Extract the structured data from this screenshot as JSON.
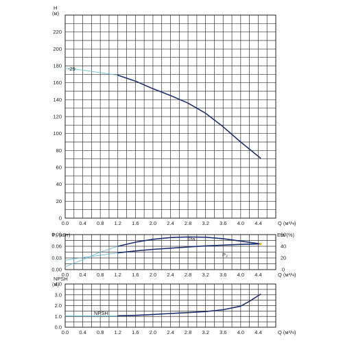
{
  "chart_data": [
    {
      "type": "line",
      "name": "head-curve",
      "ylabel": "H",
      "yunit": "(м)",
      "xlabel": "Q (м³/ч)",
      "xlim": [
        0.0,
        4.8
      ],
      "ylim": [
        0,
        240
      ],
      "grid": true,
      "xticks": [
        "0.0",
        "0.4",
        "0.8",
        "1.2",
        "1.6",
        "2.0",
        "2.4",
        "2.8",
        "3.2",
        "3.6",
        "4.0",
        "4.4"
      ],
      "yticks": [
        "0",
        "20",
        "40",
        "60",
        "80",
        "100",
        "120",
        "140",
        "160",
        "180",
        "200",
        "220"
      ],
      "annotation": "-29",
      "series": [
        {
          "name": "",
          "style": "dashed",
          "color": "#5bb8d6",
          "x": [
            0.0,
            0.4,
            0.8,
            1.2
          ],
          "y": [
            177,
            175,
            172,
            169
          ]
        },
        {
          "name": "",
          "style": "solid",
          "color": "#1c2f6e",
          "x": [
            1.2,
            1.6,
            2.0,
            2.4,
            2.8,
            3.2,
            3.6,
            4.0,
            4.45
          ],
          "y": [
            169,
            162,
            153,
            145,
            136,
            124,
            108,
            90,
            71
          ]
        }
      ]
    },
    {
      "type": "line",
      "name": "power-efficiency-curve",
      "ylabel": "P₂ (кВт)",
      "y2label": "Eta (%)",
      "xlabel": "Q (м³/ч)",
      "xlim": [
        0.0,
        4.8
      ],
      "ylim": [
        0.0,
        0.09
      ],
      "y2lim": [
        0,
        60
      ],
      "grid": true,
      "xticks": [
        "0.0",
        "0.4",
        "0.8",
        "1.2",
        "1.6",
        "2.0",
        "2.4",
        "2.8",
        "3.2",
        "3.6",
        "4.0",
        "4.4"
      ],
      "yticks": [
        "0.00",
        "0.03",
        "0.06",
        "0.09"
      ],
      "y2ticks": [
        "0",
        "20",
        "40",
        "60"
      ],
      "series": [
        {
          "name": "Eta",
          "axis": "right",
          "color": "#1c2f6e",
          "x": [
            1.2,
            1.6,
            2.0,
            2.4,
            2.8,
            3.2,
            3.6,
            4.0,
            4.45
          ],
          "y": [
            40,
            47,
            52,
            55,
            56,
            55.5,
            53,
            49,
            44
          ]
        },
        {
          "name": "",
          "axis": "right",
          "style": "dashed",
          "color": "#5bb8d6",
          "x": [
            0.0,
            0.4,
            0.8,
            1.2
          ],
          "y": [
            5,
            17,
            30,
            40
          ]
        },
        {
          "name": "P₂",
          "axis": "left",
          "color": "#1c2f6e",
          "x": [
            1.2,
            1.6,
            2.0,
            2.4,
            2.8,
            3.2,
            3.6,
            4.0,
            4.45
          ],
          "y": [
            0.043,
            0.048,
            0.052,
            0.055,
            0.058,
            0.061,
            0.063,
            0.065,
            0.066
          ]
        },
        {
          "name": "",
          "axis": "left",
          "style": "dashed",
          "color": "#5bb8d6",
          "x": [
            0.0,
            0.4,
            0.8,
            1.2
          ],
          "y": [
            0.024,
            0.031,
            0.037,
            0.043
          ]
        }
      ]
    },
    {
      "type": "line",
      "name": "npsh-curve",
      "ylabel": "NPSH",
      "yunit": "(м)",
      "xlabel": "Q (м³/ч)",
      "xlim": [
        0.0,
        4.8
      ],
      "ylim": [
        0.0,
        4.0
      ],
      "grid": true,
      "xticks": [
        "0.0",
        "0.4",
        "0.8",
        "1.2",
        "1.6",
        "2.0",
        "2.4",
        "2.8",
        "3.2",
        "3.6",
        "4.0",
        "4.4"
      ],
      "yticks": [
        "0.0",
        "1.0",
        "2.0",
        "3.0",
        "4.0"
      ],
      "series": [
        {
          "name": "NPSH",
          "style": "dashed",
          "color": "#5bb8d6",
          "x": [
            0.0,
            0.4,
            0.8,
            1.2
          ],
          "y": [
            1.05,
            1.05,
            1.05,
            1.06
          ]
        },
        {
          "name": "",
          "style": "solid",
          "color": "#1c2f6e",
          "x": [
            1.2,
            1.6,
            2.0,
            2.4,
            2.8,
            3.2,
            3.6,
            4.0,
            4.2,
            4.45
          ],
          "y": [
            1.06,
            1.1,
            1.18,
            1.27,
            1.35,
            1.45,
            1.62,
            1.95,
            2.4,
            3.05
          ]
        }
      ]
    }
  ]
}
